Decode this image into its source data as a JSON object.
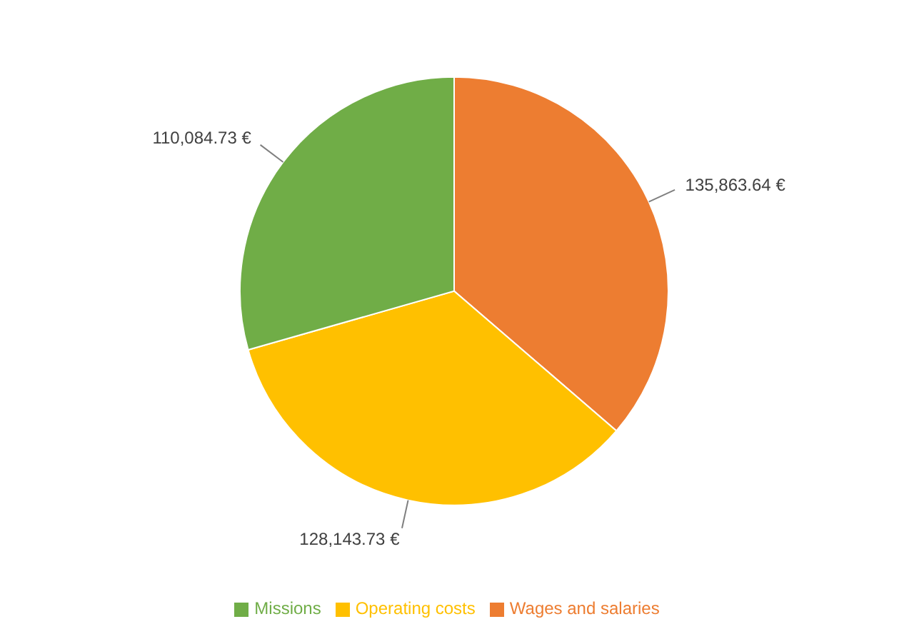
{
  "chart_data": {
    "type": "pie",
    "categories": [
      "Wages and salaries",
      "Operating costs",
      "Missions"
    ],
    "values": [
      135863.64,
      128143.73,
      110084.73
    ],
    "colors": [
      "#ed7d31",
      "#ffc000",
      "#70ad47"
    ],
    "value_labels": [
      "135,863.64 €",
      "128,143.73 €",
      "110,084.73 €"
    ],
    "legend": "bottom"
  }
}
